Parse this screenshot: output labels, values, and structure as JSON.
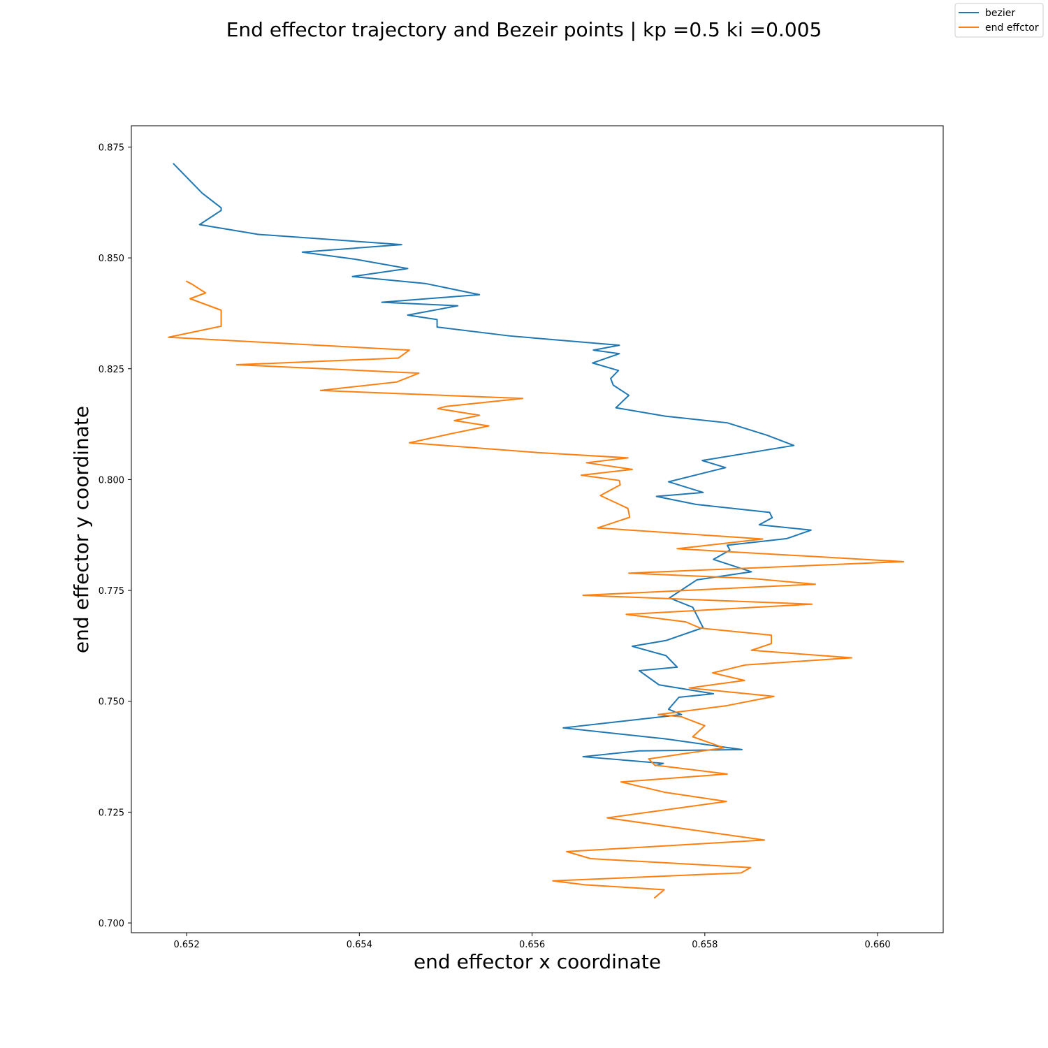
{
  "chart_data": {
    "type": "line",
    "title": "End effector trajectory and Bezeir points | kp =0.5 ki =0.005",
    "xlabel": "end effector x coordinate",
    "ylabel": "end effector y coordinate",
    "xlim": [
      0.65136,
      0.66076
    ],
    "ylim": [
      0.6978,
      0.8798
    ],
    "xticks": [
      "0.652",
      "0.654",
      "0.656",
      "0.658",
      "0.660"
    ],
    "xtick_values": [
      0.652,
      0.654,
      0.656,
      0.658,
      0.66
    ],
    "yticks": [
      "0.700",
      "0.725",
      "0.750",
      "0.775",
      "0.800",
      "0.825",
      "0.850",
      "0.875"
    ],
    "ytick_values": [
      0.7,
      0.725,
      0.75,
      0.775,
      0.8,
      0.825,
      0.85,
      0.875
    ],
    "grid": false,
    "legend_position": "top-right",
    "series": [
      {
        "name": "bezier",
        "color": "#1f77b4",
        "x": [
          0.65185,
          0.65218,
          0.6524,
          0.6524,
          0.65215,
          0.65283,
          0.65449,
          0.65334,
          0.65395,
          0.65456,
          0.65392,
          0.65477,
          0.65539,
          0.65426,
          0.65514,
          0.65456,
          0.6549,
          0.6549,
          0.65574,
          0.65701,
          0.65671,
          0.65701,
          0.6567,
          0.657,
          0.65691,
          0.65694,
          0.65712,
          0.65697,
          0.65754,
          0.65826,
          0.65872,
          0.65903,
          0.65797,
          0.65824,
          0.65758,
          0.65798,
          0.65744,
          0.6579,
          0.65875,
          0.65878,
          0.65863,
          0.65923,
          0.65895,
          0.65826,
          0.65829,
          0.6581,
          0.65854,
          0.65791,
          0.65759,
          0.65786,
          0.65798,
          0.65755,
          0.65716,
          0.65755,
          0.65768,
          0.65724,
          0.65747,
          0.6581,
          0.6577,
          0.65758,
          0.65773,
          0.65636,
          0.65755,
          0.65843,
          0.65723,
          0.65659,
          0.65752,
          0.65743
        ],
        "y": [
          0.8712,
          0.8646,
          0.8613,
          0.8607,
          0.8575,
          0.8553,
          0.853,
          0.8513,
          0.8497,
          0.8476,
          0.8458,
          0.8442,
          0.8417,
          0.84,
          0.8392,
          0.8371,
          0.8361,
          0.8344,
          0.8324,
          0.8303,
          0.8292,
          0.8284,
          0.8263,
          0.8246,
          0.8228,
          0.8213,
          0.819,
          0.8162,
          0.8143,
          0.8128,
          0.81,
          0.8077,
          0.8043,
          0.8027,
          0.7995,
          0.7971,
          0.7962,
          0.7944,
          0.7926,
          0.7914,
          0.7898,
          0.7886,
          0.7867,
          0.7852,
          0.7841,
          0.782,
          0.7792,
          0.7774,
          0.7733,
          0.7712,
          0.7666,
          0.7637,
          0.7624,
          0.7603,
          0.7577,
          0.7569,
          0.7537,
          0.7517,
          0.7509,
          0.7482,
          0.747,
          0.744,
          0.7415,
          0.7391,
          0.7388,
          0.7375,
          0.736,
          0.7355
        ]
      },
      {
        "name": "end effctor",
        "color": "#ff7f0e",
        "x": [
          0.652,
          0.65206,
          0.65222,
          0.65204,
          0.6524,
          0.6524,
          0.65179,
          0.65458,
          0.65445,
          0.65258,
          0.65469,
          0.65443,
          0.65355,
          0.65589,
          0.655,
          0.65491,
          0.65539,
          0.6551,
          0.6555,
          0.65505,
          0.65458,
          0.65606,
          0.65711,
          0.65663,
          0.65716,
          0.65657,
          0.65701,
          0.65702,
          0.65679,
          0.65711,
          0.65713,
          0.65676,
          0.65867,
          0.65768,
          0.6603,
          0.65712,
          0.65854,
          0.65928,
          0.65659,
          0.65924,
          0.65709,
          0.65778,
          0.65795,
          0.65877,
          0.65877,
          0.65854,
          0.6597,
          0.65847,
          0.65809,
          0.65846,
          0.65782,
          0.6588,
          0.65825,
          0.65746,
          0.65773,
          0.658,
          0.65786,
          0.65822,
          0.65735,
          0.65742,
          0.65826,
          0.65703,
          0.65753,
          0.65825,
          0.65687,
          0.65869,
          0.6564,
          0.65668,
          0.65853,
          0.65842,
          0.65624,
          0.65662,
          0.65753,
          0.65742
        ],
        "y": [
          0.8447,
          0.8441,
          0.8421,
          0.8408,
          0.8382,
          0.8346,
          0.8321,
          0.8292,
          0.8274,
          0.8259,
          0.824,
          0.822,
          0.8201,
          0.8183,
          0.8165,
          0.816,
          0.8145,
          0.8133,
          0.8121,
          0.8103,
          0.8083,
          0.8061,
          0.8049,
          0.8038,
          0.8023,
          0.801,
          0.7998,
          0.7988,
          0.7964,
          0.7935,
          0.7915,
          0.7891,
          0.7866,
          0.7844,
          0.7815,
          0.7789,
          0.7777,
          0.7764,
          0.7739,
          0.7719,
          0.7696,
          0.7679,
          0.7665,
          0.7649,
          0.763,
          0.7615,
          0.7598,
          0.7582,
          0.7564,
          0.7547,
          0.753,
          0.7511,
          0.749,
          0.747,
          0.7465,
          0.7445,
          0.742,
          0.7395,
          0.737,
          0.7356,
          0.7336,
          0.7318,
          0.7295,
          0.7274,
          0.7237,
          0.7187,
          0.7161,
          0.7145,
          0.7125,
          0.7113,
          0.7095,
          0.7086,
          0.7075,
          0.7057
        ]
      }
    ]
  }
}
